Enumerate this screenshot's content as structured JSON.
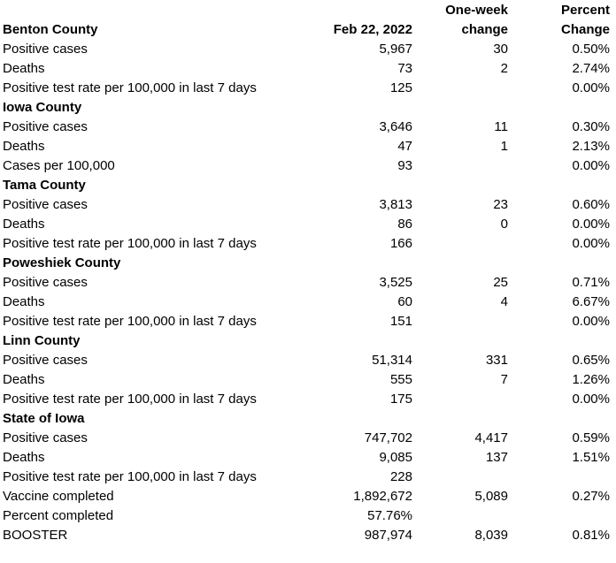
{
  "page": {
    "background_color": "#ffffff",
    "text_color": "#000000"
  },
  "chart_data": {
    "type": "table",
    "columns": [
      "",
      "Feb 22, 2022",
      "One-week change",
      "Percent Change"
    ],
    "header": {
      "line1": {
        "label": "",
        "value": "",
        "change": "One-week",
        "percent": "Percent"
      },
      "line2": {
        "label": "Benton County",
        "value": "Feb 22, 2022",
        "change": "change",
        "percent": "Change"
      }
    },
    "rows": [
      {
        "label": "Positive cases",
        "value": "5,967",
        "change": "30",
        "percent": "0.50%",
        "bold": false
      },
      {
        "label": "Deaths",
        "value": "73",
        "change": "2",
        "percent": "2.74%",
        "bold": false
      },
      {
        "label": "Positive test rate per 100,000 in last 7 days",
        "value": "125",
        "change": "",
        "percent": "0.00%",
        "bold": false
      },
      {
        "label": "Iowa County",
        "value": "",
        "change": "",
        "percent": "",
        "bold": true
      },
      {
        "label": "Positive cases",
        "value": "3,646",
        "change": "11",
        "percent": "0.30%",
        "bold": false
      },
      {
        "label": "Deaths",
        "value": "47",
        "change": "1",
        "percent": "2.13%",
        "bold": false
      },
      {
        "label": "Cases per 100,000",
        "value": "93",
        "change": "",
        "percent": "0.00%",
        "bold": false
      },
      {
        "label": "Tama County",
        "value": "",
        "change": "",
        "percent": "",
        "bold": true
      },
      {
        "label": "Positive cases",
        "value": "3,813",
        "change": "23",
        "percent": "0.60%",
        "bold": false
      },
      {
        "label": "Deaths",
        "value": "86",
        "change": "0",
        "percent": "0.00%",
        "bold": false
      },
      {
        "label": "Positive test rate per 100,000 in last 7 days",
        "value": "166",
        "change": "",
        "percent": "0.00%",
        "bold": false
      },
      {
        "label": "Poweshiek County",
        "value": "",
        "change": "",
        "percent": "",
        "bold": true
      },
      {
        "label": "Positive cases",
        "value": "3,525",
        "change": "25",
        "percent": "0.71%",
        "bold": false
      },
      {
        "label": "Deaths",
        "value": "60",
        "change": "4",
        "percent": "6.67%",
        "bold": false
      },
      {
        "label": "Positive test rate per 100,000 in last 7 days",
        "value": "151",
        "change": "",
        "percent": "0.00%",
        "bold": false
      },
      {
        "label": "Linn County",
        "value": "",
        "change": "",
        "percent": "",
        "bold": true
      },
      {
        "label": "Positive cases",
        "value": "51,314",
        "change": "331",
        "percent": "0.65%",
        "bold": false
      },
      {
        "label": "Deaths",
        "value": "555",
        "change": "7",
        "percent": "1.26%",
        "bold": false
      },
      {
        "label": "Positive test rate per 100,000 in last 7 days",
        "value": "175",
        "change": "",
        "percent": "0.00%",
        "bold": false
      },
      {
        "label": "State of Iowa",
        "value": "",
        "change": "",
        "percent": "",
        "bold": true
      },
      {
        "label": "Positive cases",
        "value": "747,702",
        "change": "4,417",
        "percent": "0.59%",
        "bold": false
      },
      {
        "label": "Deaths",
        "value": "9,085",
        "change": "137",
        "percent": "1.51%",
        "bold": false
      },
      {
        "label": "Positive test rate per 100,000 in last 7 days",
        "value": "228",
        "change": "",
        "percent": "",
        "bold": false
      },
      {
        "label": "Vaccine completed",
        "value": "1,892,672",
        "change": "5,089",
        "percent": "0.27%",
        "bold": false
      },
      {
        "label": "Percent completed",
        "value": "57.76%",
        "change": "",
        "percent": "",
        "bold": false
      },
      {
        "label": "BOOSTER",
        "value": "987,974",
        "change": "8,039",
        "percent": "0.81%",
        "bold": false
      }
    ]
  }
}
